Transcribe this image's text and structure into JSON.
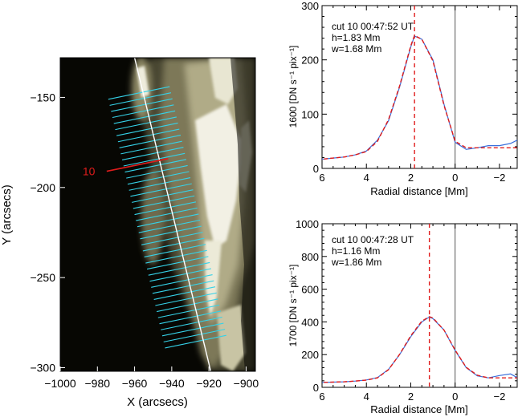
{
  "chart_data": [
    {
      "type": "image",
      "xlabel": "X (arcsecs)",
      "ylabel": "Y (arcsecs)",
      "xlim": [
        -1000,
        -895
      ],
      "ylim": [
        -302,
        -128
      ],
      "x_ticks": [
        -1000,
        -980,
        -960,
        -940,
        -920,
        -900
      ],
      "x_tick_labels": [
        "−1000",
        "−980",
        "−960",
        "−940",
        "−920",
        "−900"
      ],
      "y_ticks": [
        -150,
        -200,
        -250,
        -300
      ],
      "y_tick_labels": [
        "−150",
        "−200",
        "−250",
        "−300"
      ],
      "annotation": "10",
      "cut_axis": {
        "start": [
          -960,
          -128
        ],
        "end": [
          -919,
          -302
        ]
      },
      "highlighted_cut": {
        "start": [
          -975,
          -191
        ],
        "end": [
          -942,
          -184
        ]
      },
      "cut_count": 42,
      "colors": {
        "cuts": "#35d2e8",
        "highlight": "#e01c1c",
        "axis_line": "#ffffff",
        "background": "#070703",
        "emission": "#8a8560"
      }
    },
    {
      "type": "line",
      "title": "cut 10 00:47:52 UT",
      "annotations": [
        "h=1.83 Mm",
        "w=1.68 Mm"
      ],
      "xlabel": "Radial distance [Mm]",
      "ylabel": "1600 [DN s⁻¹ pix⁻¹]",
      "xlim": [
        6,
        -2.8
      ],
      "ylim": [
        0,
        300
      ],
      "x_ticks": [
        6,
        4,
        2,
        0,
        -2
      ],
      "x_tick_labels": [
        "6",
        "4",
        "2",
        "0",
        "−2"
      ],
      "y_ticks": [
        0,
        100,
        200,
        300
      ],
      "y_tick_labels": [
        "0",
        "100",
        "200",
        "300"
      ],
      "x": [
        6.5,
        6,
        5.5,
        5,
        4.5,
        4,
        3.5,
        3,
        2.5,
        2,
        1.83,
        1.5,
        1,
        0.5,
        0,
        -0.5,
        -1,
        -1.5,
        -2,
        -2.5,
        -2.8
      ],
      "series": [
        {
          "color": "#3a6fdc",
          "style": "solid",
          "values": [
            16,
            17,
            19,
            21,
            25,
            32,
            52,
            88,
            150,
            224,
            244,
            238,
            200,
            118,
            48,
            35,
            38,
            42,
            42,
            46,
            52
          ]
        },
        {
          "color": "#e01c1c",
          "style": "dashed",
          "values": [
            16,
            17,
            19,
            21,
            25,
            31,
            50,
            90,
            152,
            226,
            245,
            238,
            198,
            116,
            50,
            38,
            38,
            38,
            38,
            38,
            38
          ]
        }
      ],
      "vlines": [
        {
          "x": 1.83,
          "color": "#e01c1c",
          "style": "dashed"
        },
        {
          "x": 0,
          "color": "#555555",
          "style": "solid"
        }
      ]
    },
    {
      "type": "line",
      "title": "cut 10 00:47:28 UT",
      "annotations": [
        "h=1.16 Mm",
        "w=1.86 Mm"
      ],
      "xlabel": "Radial distance [Mm]",
      "ylabel": "1700 [DN s⁻¹ pix⁻¹]",
      "xlim": [
        6,
        -2.8
      ],
      "ylim": [
        0,
        1000
      ],
      "x_ticks": [
        6,
        4,
        2,
        0,
        -2
      ],
      "x_tick_labels": [
        "6",
        "4",
        "2",
        "0",
        "−2"
      ],
      "y_ticks": [
        0,
        200,
        400,
        600,
        800,
        1000
      ],
      "y_tick_labels": [
        "0",
        "200",
        "400",
        "600",
        "800",
        "1000"
      ],
      "x": [
        6.5,
        6,
        5.5,
        5,
        4.5,
        4,
        3.5,
        3,
        2.5,
        2,
        1.5,
        1.16,
        1,
        0.5,
        0,
        -0.5,
        -1,
        -1.5,
        -2,
        -2.5,
        -2.8
      ],
      "series": [
        {
          "color": "#3a6fdc",
          "style": "solid",
          "values": [
            28,
            30,
            32,
            34,
            38,
            45,
            60,
            110,
            200,
            310,
            400,
            430,
            420,
            350,
            225,
            120,
            70,
            58,
            72,
            82,
            60
          ]
        },
        {
          "color": "#e01c1c",
          "style": "dashed",
          "values": [
            28,
            30,
            32,
            34,
            38,
            44,
            58,
            108,
            202,
            315,
            405,
            432,
            424,
            350,
            228,
            122,
            74,
            58,
            58,
            58,
            58
          ]
        }
      ],
      "vlines": [
        {
          "x": 1.16,
          "color": "#e01c1c",
          "style": "dashed"
        },
        {
          "x": 0,
          "color": "#555555",
          "style": "solid"
        }
      ]
    }
  ]
}
